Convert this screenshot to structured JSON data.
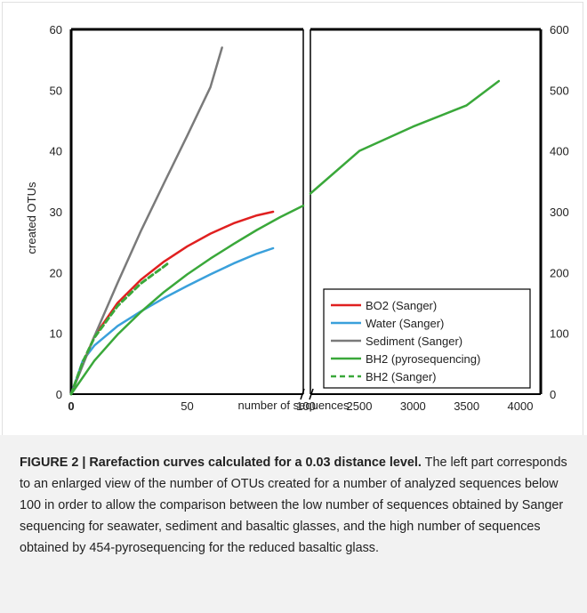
{
  "chart_data": {
    "type": "line",
    "xlabel": "number of sequences",
    "ylabel": "created OTUs",
    "left_panel": {
      "xlim": [
        0,
        100
      ],
      "x_ticks": [
        "0",
        "50",
        "100"
      ],
      "ylim": [
        0,
        60
      ],
      "y_ticks": [
        "0",
        "10",
        "20",
        "30",
        "40",
        "50",
        "60"
      ]
    },
    "right_panel": {
      "xlim": [
        100,
        4000
      ],
      "x_ticks": [
        "2500",
        "3000",
        "3500",
        "4000"
      ],
      "ylim": [
        0,
        600
      ],
      "y_ticks": [
        "0",
        "100",
        "200",
        "300",
        "400",
        "500",
        "600"
      ]
    },
    "series": [
      {
        "name": "BO2 (Sanger)",
        "color": "#e02020",
        "dash": false,
        "panel": "left",
        "x": [
          0,
          5,
          10,
          20,
          30,
          40,
          50,
          60,
          70,
          80,
          87
        ],
        "y": [
          0,
          5,
          9.5,
          15,
          18.8,
          21.8,
          24.3,
          26.4,
          28.1,
          29.4,
          30
        ]
      },
      {
        "name": "Water (Sanger)",
        "color": "#3aa0db",
        "dash": false,
        "panel": "left",
        "x": [
          0,
          5,
          10,
          20,
          30,
          40,
          50,
          60,
          70,
          80,
          87
        ],
        "y": [
          0,
          5.5,
          8,
          11.2,
          13.6,
          15.8,
          17.8,
          19.7,
          21.5,
          23.1,
          24
        ]
      },
      {
        "name": "Sediment (Sanger)",
        "color": "#7a7a7a",
        "dash": false,
        "panel": "left",
        "x": [
          0,
          10,
          20,
          30,
          40,
          50,
          60,
          65
        ],
        "y": [
          0,
          9.5,
          18.3,
          26.8,
          34.7,
          42.5,
          50.5,
          57
        ]
      },
      {
        "name": "BH2 (pyrosequencing)",
        "color": "#3aa83a",
        "dash": false,
        "panel": "both",
        "x": [
          0,
          10,
          20,
          30,
          40,
          50,
          60,
          70,
          80,
          90,
          100
        ],
        "y": [
          0,
          5.5,
          9.8,
          13.5,
          16.8,
          19.7,
          22.3,
          24.7,
          27,
          29.1,
          31
        ],
        "x_right": [
          100,
          2500,
          3000,
          3500,
          3800
        ],
        "y_right": [
          330,
          400,
          440,
          475,
          515
        ]
      },
      {
        "name": "BH2 (Sanger)",
        "color": "#3aa83a",
        "dash": true,
        "panel": "left",
        "x": [
          0,
          5,
          10,
          20,
          30,
          40,
          42
        ],
        "y": [
          0,
          5.3,
          9.3,
          14.5,
          18.2,
          21,
          21.6
        ]
      }
    ],
    "legend_position": "lower-right"
  },
  "caption": {
    "bold": "FIGURE 2 | Rarefaction curves calculated for a 0.03 distance level.",
    "text": " The left part corresponds to an enlarged view of the number of OTUs created for a number of analyzed sequences below 100 in order to allow the comparison between the low number of sequences obtained by Sanger sequencing for seawater, sediment and basaltic glasses, and the high number of sequences obtained by 454-pyrosequencing for the reduced basaltic glass."
  }
}
